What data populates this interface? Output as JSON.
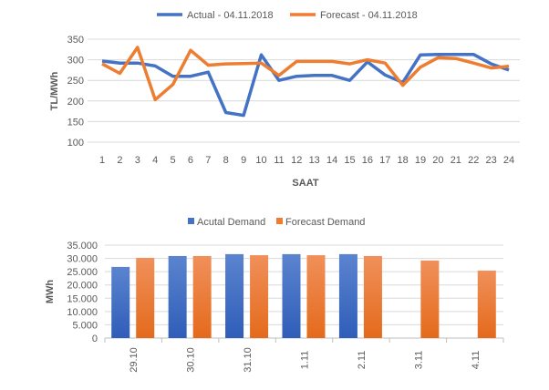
{
  "chart_data": [
    {
      "type": "line",
      "title": "",
      "xlabel": "SAAT",
      "ylabel": "TL/MWh",
      "ylim": [
        100,
        350
      ],
      "yticks": [
        100,
        150,
        200,
        250,
        300,
        350
      ],
      "grid": true,
      "legend_position": "top",
      "x": [
        1,
        2,
        3,
        4,
        5,
        6,
        7,
        8,
        9,
        10,
        11,
        12,
        13,
        14,
        15,
        16,
        17,
        18,
        19,
        20,
        21,
        22,
        23,
        24
      ],
      "series": [
        {
          "name": "Actual - 04.11.2018",
          "color": "#4472C4",
          "values": [
            297,
            292,
            292,
            285,
            260,
            260,
            270,
            172,
            165,
            312,
            250,
            260,
            262,
            262,
            250,
            295,
            263,
            245,
            312,
            313,
            313,
            313,
            290,
            275
          ]
        },
        {
          "name": "Forecast - 04.11.2018",
          "color": "#ED7D31",
          "values": [
            290,
            267,
            330,
            203,
            240,
            323,
            287,
            290,
            291,
            292,
            262,
            296,
            296,
            296,
            290,
            300,
            292,
            238,
            282,
            305,
            303,
            292,
            280,
            284
          ]
        }
      ]
    },
    {
      "type": "bar",
      "title": "",
      "xlabel": "",
      "ylabel": "MWh",
      "ylim": [
        0,
        35000
      ],
      "yticks": [
        "0",
        "5.000",
        "10.000",
        "15.000",
        "20.000",
        "25.000",
        "30.000",
        "35.000"
      ],
      "grid": true,
      "legend_position": "top",
      "categories": [
        "29.10",
        "30.10",
        "31.10",
        "1.11",
        "2.11",
        "3.11",
        "4.11"
      ],
      "series": [
        {
          "name": "Acutal Demand",
          "color": "#4472C4",
          "values": [
            26800,
            30900,
            31600,
            31600,
            31600,
            null,
            null
          ]
        },
        {
          "name": "Forecast Demand",
          "color": "#ED7D31",
          "values": [
            30200,
            30900,
            31200,
            31200,
            30900,
            29200,
            25400
          ]
        }
      ]
    }
  ]
}
